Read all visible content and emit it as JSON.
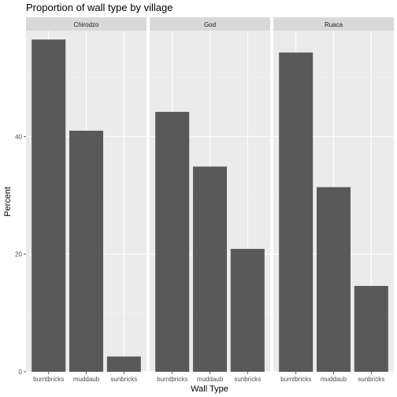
{
  "chart_data": {
    "type": "bar",
    "title": "Proportion of wall type by village",
    "xlabel": "Wall Type",
    "ylabel": "Percent",
    "ylim": [
      0,
      58
    ],
    "yticks": [
      0,
      20,
      40
    ],
    "categories": [
      "burntbricks",
      "muddaub",
      "sunbricks"
    ],
    "facets": [
      {
        "name": "Chirodzo",
        "values": [
          56.5,
          41.0,
          2.6
        ]
      },
      {
        "name": "God",
        "values": [
          44.2,
          34.9,
          20.9
        ]
      },
      {
        "name": "Ruaca",
        "values": [
          54.3,
          31.4,
          14.6
        ]
      }
    ],
    "grid": true,
    "legend": "none",
    "colors": {
      "bar": "#595959",
      "panel": "#ebebeb",
      "strip": "#d9d9d9",
      "grid_major": "#ffffff",
      "grid_minor": "#f2f2f2",
      "tick": "#333333"
    }
  }
}
